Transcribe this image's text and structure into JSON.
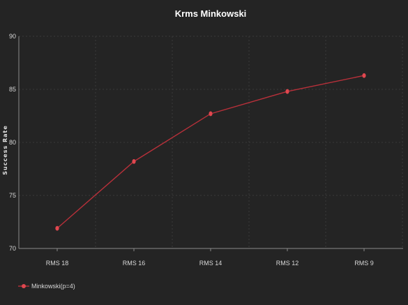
{
  "chart_data": {
    "type": "line",
    "title": "Krms Minkowski",
    "xlabel": "",
    "ylabel": "Success Rate",
    "categories": [
      "RMS 18",
      "RMS 16",
      "RMS 14",
      "RMS 12",
      "RMS 9"
    ],
    "series": [
      {
        "name": "Minkowski(p=4)",
        "values": [
          71.9,
          78.2,
          82.7,
          84.8,
          86.3
        ],
        "color": "#e0474f"
      }
    ],
    "ylim": [
      70,
      90
    ],
    "yticks": [
      70,
      75,
      80,
      85,
      90
    ],
    "grid": true,
    "legend_position": "bottom-left",
    "colors": {
      "background": "#242424",
      "grid": "#3a3a3a",
      "axis": "#8a8a8a",
      "line": "#b8303a",
      "marker": "#e0474f"
    }
  }
}
